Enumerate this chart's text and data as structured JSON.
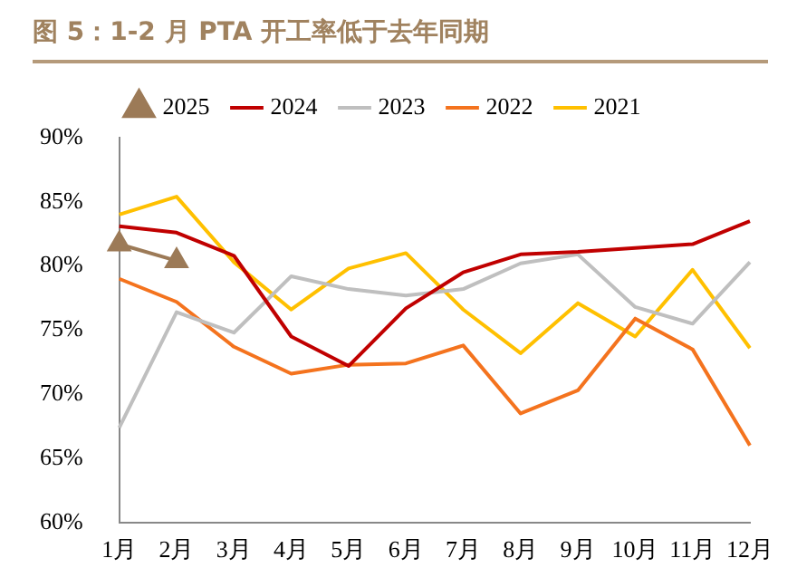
{
  "chart_data": {
    "type": "line",
    "title": "图 5：1-2 月 PTA 开工率低于去年同期",
    "categories": [
      "1月",
      "2月",
      "3月",
      "4月",
      "5月",
      "6月",
      "7月",
      "8月",
      "9月",
      "10月",
      "11月",
      "12月"
    ],
    "series": [
      {
        "name": "2025",
        "color": "#9c7a57",
        "marker": "triangle",
        "values": [
          81.7,
          80.4,
          null,
          null,
          null,
          null,
          null,
          null,
          null,
          null,
          null,
          null
        ]
      },
      {
        "name": "2024",
        "color": "#c00000",
        "values": [
          83.1,
          82.6,
          80.8,
          74.5,
          72.2,
          76.7,
          79.5,
          80.9,
          81.1,
          81.4,
          81.7,
          83.5
        ]
      },
      {
        "name": "2023",
        "color": "#bfbfbf",
        "values": [
          67.4,
          76.4,
          74.8,
          79.2,
          78.2,
          77.7,
          78.2,
          80.2,
          80.9,
          76.8,
          75.5,
          80.3
        ]
      },
      {
        "name": "2022",
        "color": "#f4731e",
        "values": [
          79.0,
          77.2,
          73.7,
          71.6,
          72.3,
          72.4,
          73.8,
          68.5,
          70.3,
          75.9,
          73.5,
          66.0
        ]
      },
      {
        "name": "2021",
        "color": "#ffc000",
        "values": [
          84.0,
          85.4,
          80.3,
          76.6,
          79.8,
          81.0,
          76.6,
          73.2,
          77.1,
          74.5,
          79.7,
          73.6
        ]
      }
    ],
    "ylim": [
      60,
      90
    ],
    "yticks": [
      {
        "value": 60,
        "label": "60%"
      },
      {
        "value": 65,
        "label": "65%"
      },
      {
        "value": 70,
        "label": "70%"
      },
      {
        "value": 75,
        "label": "75%"
      },
      {
        "value": 80,
        "label": "80%"
      },
      {
        "value": 85,
        "label": "85%"
      },
      {
        "value": 90,
        "label": "90%"
      }
    ],
    "grid": false,
    "legend": "top",
    "marker": "none",
    "line_style": "solid"
  }
}
